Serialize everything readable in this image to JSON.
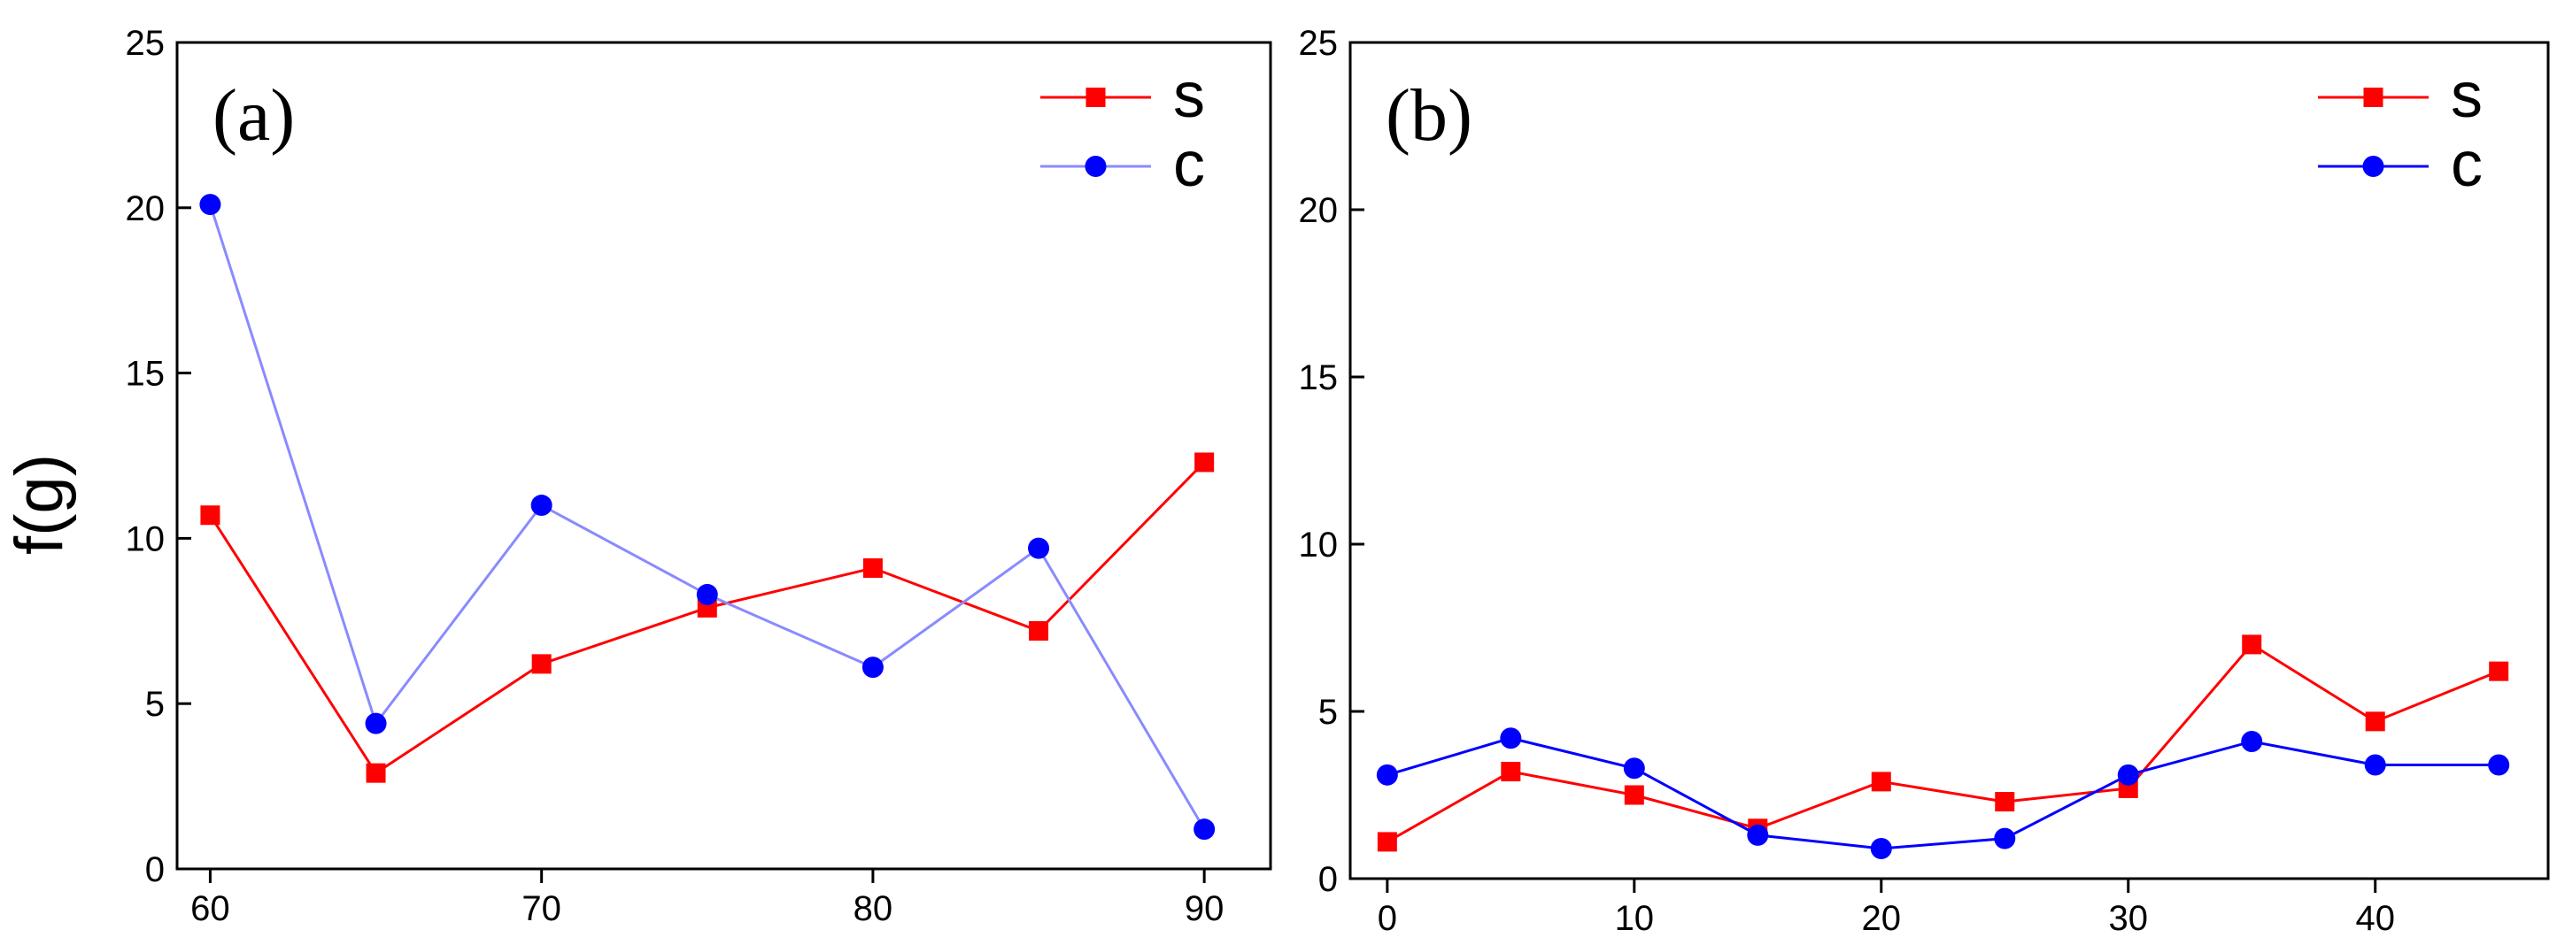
{
  "chart_data": [
    {
      "type": "line",
      "panel_label": "(a)",
      "title": "",
      "xlabel": "",
      "ylabel": "f(g)",
      "x": [
        60,
        65,
        70,
        75,
        80,
        85,
        90
      ],
      "xlim": [
        59,
        92
      ],
      "ylim": [
        0,
        25
      ],
      "xticks": [
        60,
        70,
        80,
        90
      ],
      "yticks": [
        0,
        5,
        10,
        15,
        20,
        25
      ],
      "grid": false,
      "legend_position": "top-right",
      "series": [
        {
          "name": "s",
          "color": "#ff0000",
          "marker": "square",
          "values": [
            10.7,
            2.9,
            6.2,
            7.9,
            9.1,
            7.2,
            12.3
          ]
        },
        {
          "name": "c",
          "color": "#0000ff",
          "line_color": "#8a8aff",
          "marker": "circle",
          "values": [
            20.1,
            4.4,
            11.0,
            8.3,
            6.1,
            9.7,
            1.2
          ]
        }
      ]
    },
    {
      "type": "line",
      "panel_label": "(b)",
      "title": "",
      "xlabel": "",
      "ylabel": "",
      "x": [
        0,
        5,
        10,
        15,
        20,
        25,
        30,
        35,
        40,
        45
      ],
      "xlim": [
        -1.5,
        47
      ],
      "ylim": [
        0,
        25
      ],
      "xticks": [
        0,
        10,
        20,
        30,
        40
      ],
      "yticks": [
        0,
        5,
        10,
        15,
        20,
        25
      ],
      "grid": false,
      "legend_position": "top-right",
      "series": [
        {
          "name": "s",
          "color": "#ff0000",
          "marker": "square",
          "values": [
            1.1,
            3.2,
            2.5,
            1.5,
            2.9,
            2.3,
            2.7,
            7.0,
            4.7,
            6.2
          ]
        },
        {
          "name": "c",
          "color": "#0000ff",
          "line_color": "#0000ff",
          "marker": "circle",
          "values": [
            3.1,
            4.2,
            3.3,
            1.3,
            0.9,
            1.2,
            3.1,
            4.1,
            3.4,
            3.4
          ]
        }
      ]
    }
  ]
}
